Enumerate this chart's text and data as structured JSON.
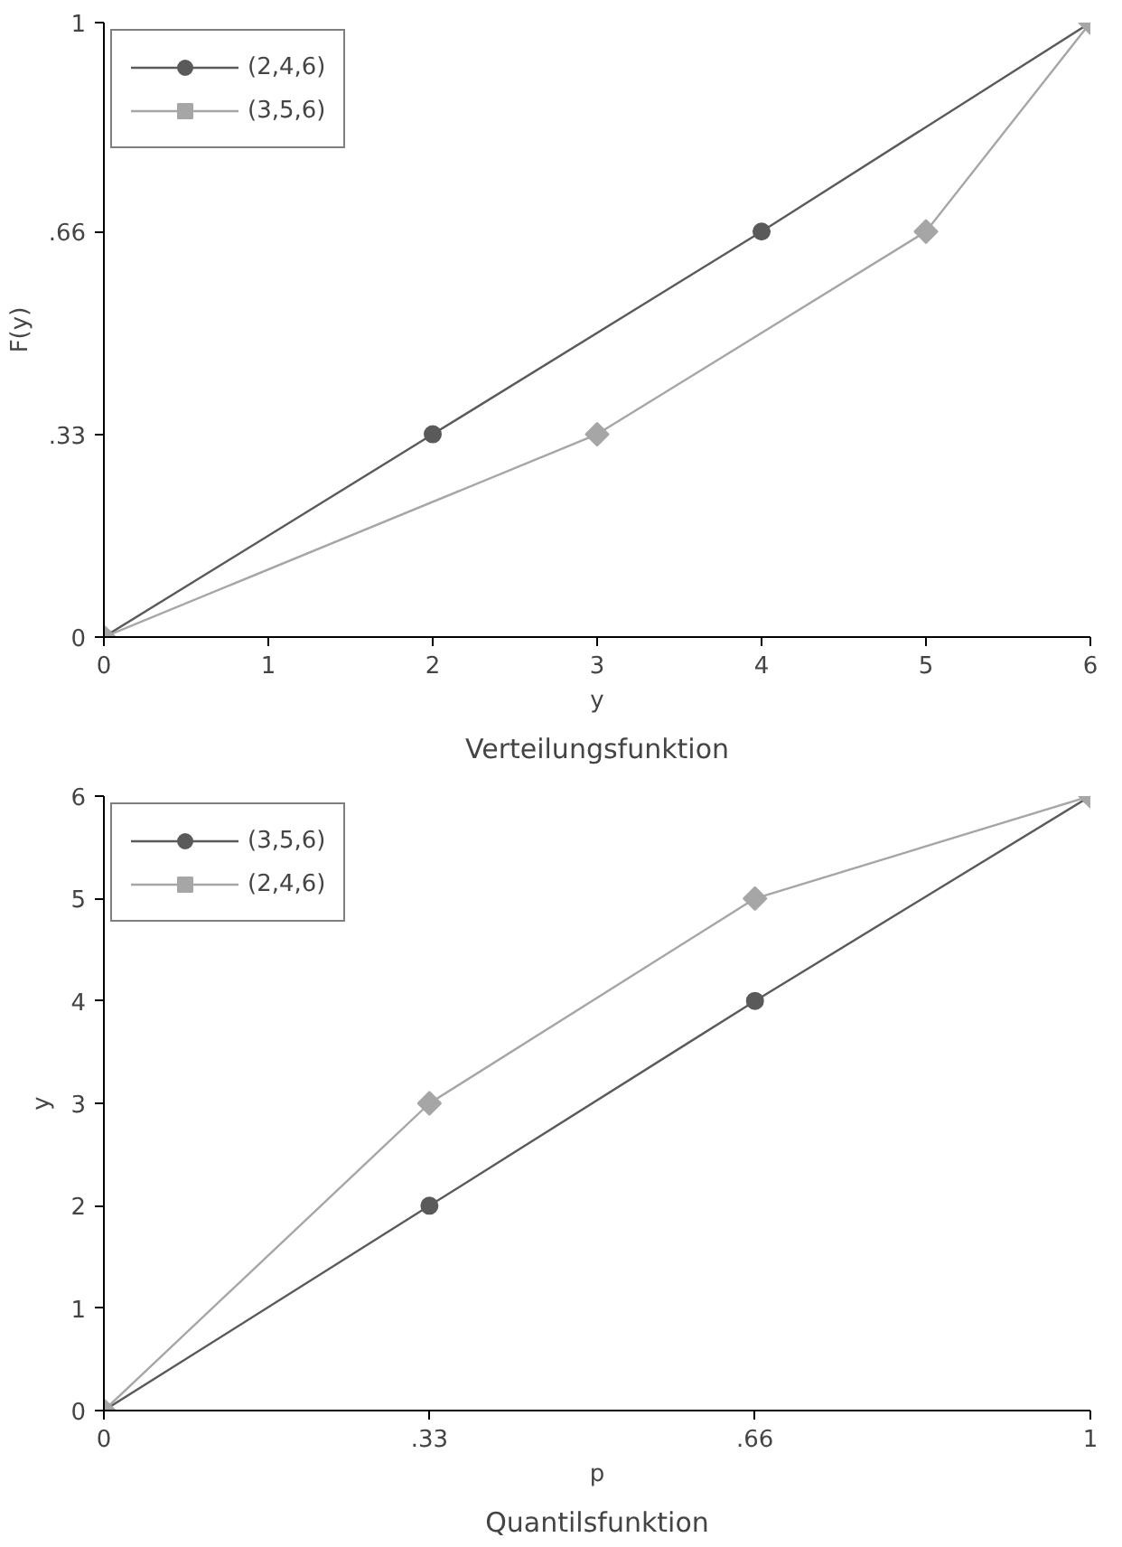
{
  "chart_data": [
    {
      "type": "line",
      "title": "Verteilungsfunktion",
      "xlabel": "y",
      "ylabel": "F(y)",
      "xlim": [
        0,
        6
      ],
      "ylim": [
        0,
        1
      ],
      "xticks": [
        0,
        1,
        2,
        3,
        4,
        5,
        6
      ],
      "yticks": [
        0,
        {
          "value": 0.33,
          "label": ".33"
        },
        {
          "value": 0.66,
          "label": ".66"
        },
        1
      ],
      "grid": false,
      "legend": "top left",
      "series": [
        {
          "name": "(2,4,6)",
          "color": "#5a5a5a",
          "marker": "circle",
          "x": [
            0,
            2,
            4,
            6
          ],
          "values": [
            0,
            0.33,
            0.66,
            1
          ]
        },
        {
          "name": "(3,5,6)",
          "color": "#a6a6a6",
          "marker": "diamond",
          "x": [
            0,
            3,
            5,
            6
          ],
          "values": [
            0,
            0.33,
            0.66,
            1
          ]
        }
      ]
    },
    {
      "type": "line",
      "title": "Quantilsfunktion",
      "xlabel": "p",
      "ylabel": "y",
      "xlim": [
        0,
        1
      ],
      "ylim": [
        0,
        6
      ],
      "xticks": [
        0,
        {
          "value": 0.33,
          "label": ".33"
        },
        {
          "value": 0.66,
          "label": ".66"
        },
        1
      ],
      "yticks": [
        0,
        1,
        2,
        3,
        4,
        5,
        6
      ],
      "grid": false,
      "legend": "top left",
      "series": [
        {
          "name": "(3,5,6)",
          "color": "#5a5a5a",
          "marker": "circle",
          "x": [
            0,
            0.33,
            0.66,
            1
          ],
          "values": [
            0,
            2,
            4,
            6
          ]
        },
        {
          "name": "(2,4,6)",
          "color": "#a6a6a6",
          "marker": "diamond",
          "x": [
            0,
            0.33,
            0.66,
            1
          ],
          "values": [
            0,
            3,
            5,
            6
          ]
        }
      ]
    }
  ]
}
